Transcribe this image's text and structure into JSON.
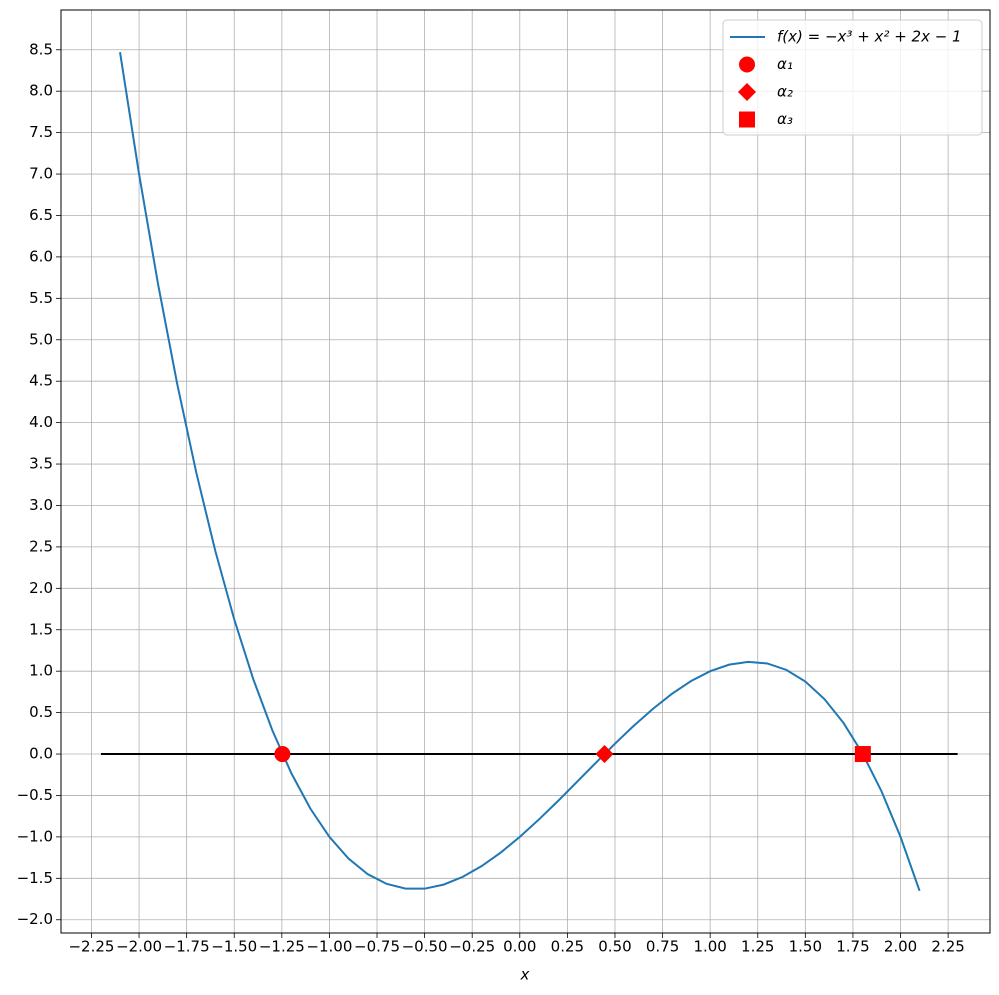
{
  "chart_data": {
    "type": "line",
    "xlabel": "x",
    "xlim": [
      -2.41,
      2.47
    ],
    "ylim": [
      -2.16,
      8.98
    ],
    "grid": true,
    "legend": "upper right",
    "xticks": [
      {
        "value": -2.25,
        "label": "−2.25"
      },
      {
        "value": -2.0,
        "label": "−2.00"
      },
      {
        "value": -1.75,
        "label": "−1.75"
      },
      {
        "value": -1.5,
        "label": "−1.50"
      },
      {
        "value": -1.25,
        "label": "−1.25"
      },
      {
        "value": -1.0,
        "label": "−1.00"
      },
      {
        "value": -0.75,
        "label": "−0.75"
      },
      {
        "value": -0.5,
        "label": "−0.50"
      },
      {
        "value": -0.25,
        "label": "−0.25"
      },
      {
        "value": 0,
        "label": "0.00"
      },
      {
        "value": 0.25,
        "label": "0.25"
      },
      {
        "value": 0.5,
        "label": "0.50"
      },
      {
        "value": 0.75,
        "label": "0.75"
      },
      {
        "value": 1.0,
        "label": "1.00"
      },
      {
        "value": 1.25,
        "label": "1.25"
      },
      {
        "value": 1.5,
        "label": "1.50"
      },
      {
        "value": 1.75,
        "label": "1.75"
      },
      {
        "value": 2.0,
        "label": "2.00"
      },
      {
        "value": 2.25,
        "label": "2.25"
      }
    ],
    "yticks": [
      {
        "value": -2.0,
        "label": "−2.0"
      },
      {
        "value": -1.5,
        "label": "−1.5"
      },
      {
        "value": -1.0,
        "label": "−1.0"
      },
      {
        "value": -0.5,
        "label": "−0.5"
      },
      {
        "value": 0,
        "label": "0.0"
      },
      {
        "value": 0.5,
        "label": "0.5"
      },
      {
        "value": 1.0,
        "label": "1.0"
      },
      {
        "value": 1.5,
        "label": "1.5"
      },
      {
        "value": 2.0,
        "label": "2.0"
      },
      {
        "value": 2.5,
        "label": "2.5"
      },
      {
        "value": 3.0,
        "label": "3.0"
      },
      {
        "value": 3.5,
        "label": "3.5"
      },
      {
        "value": 4.0,
        "label": "4.0"
      },
      {
        "value": 4.5,
        "label": "4.5"
      },
      {
        "value": 5.0,
        "label": "5.0"
      },
      {
        "value": 5.5,
        "label": "5.5"
      },
      {
        "value": 6.0,
        "label": "6.0"
      },
      {
        "value": 6.5,
        "label": "6.5"
      },
      {
        "value": 7.0,
        "label": "7.0"
      },
      {
        "value": 7.5,
        "label": "7.5"
      },
      {
        "value": 8.0,
        "label": "8.0"
      },
      {
        "value": 8.5,
        "label": "8.5"
      }
    ],
    "series": [
      {
        "color": "#000000",
        "x": [
          -2.2,
          2.3
        ],
        "values": [
          0,
          0
        ]
      },
      {
        "name": "f(x) = −x³ + x² + 2x − 1",
        "color": "#1f77b4",
        "x": [
          -2.1,
          -2.0,
          -1.9,
          -1.8,
          -1.7,
          -1.6,
          -1.5,
          -1.4,
          -1.3,
          -1.2,
          -1.1,
          -1.0,
          -0.9,
          -0.8,
          -0.7,
          -0.6,
          -0.5,
          -0.4,
          -0.3,
          -0.2,
          -0.1,
          0,
          0.1,
          0.2,
          0.3,
          0.4,
          0.5,
          0.6,
          0.7,
          0.8,
          0.9,
          1.0,
          1.1,
          1.2,
          1.3,
          1.4,
          1.5,
          1.6,
          1.7,
          1.8,
          1.9,
          2.0,
          2.1
        ],
        "values": [
          8.471,
          7,
          5.669,
          4.472,
          3.403,
          2.456,
          1.625,
          0.904,
          0.287,
          -0.232,
          -0.659,
          -1,
          -1.261,
          -1.448,
          -1.567,
          -1.624,
          -1.625,
          -1.576,
          -1.483,
          -1.352,
          -1.189,
          -1,
          -0.791,
          -0.568,
          -0.337,
          -0.104,
          0.125,
          0.344,
          0.547,
          0.728,
          0.881,
          1,
          1.079,
          1.112,
          1.093,
          1.016,
          0.875,
          0.664,
          0.377,
          0.008,
          -0.449,
          -1,
          -1.651
        ]
      },
      {
        "name": "α₁",
        "color": "#ff0000",
        "marker": "circle",
        "x": [
          -1.247
        ],
        "values": [
          0
        ]
      },
      {
        "name": "α₂",
        "color": "#ff0000",
        "marker": "diamond",
        "x": [
          0.445
        ],
        "values": [
          0
        ]
      },
      {
        "name": "α₃",
        "color": "#ff0000",
        "marker": "square",
        "x": [
          1.802
        ],
        "values": [
          0
        ]
      }
    ]
  }
}
